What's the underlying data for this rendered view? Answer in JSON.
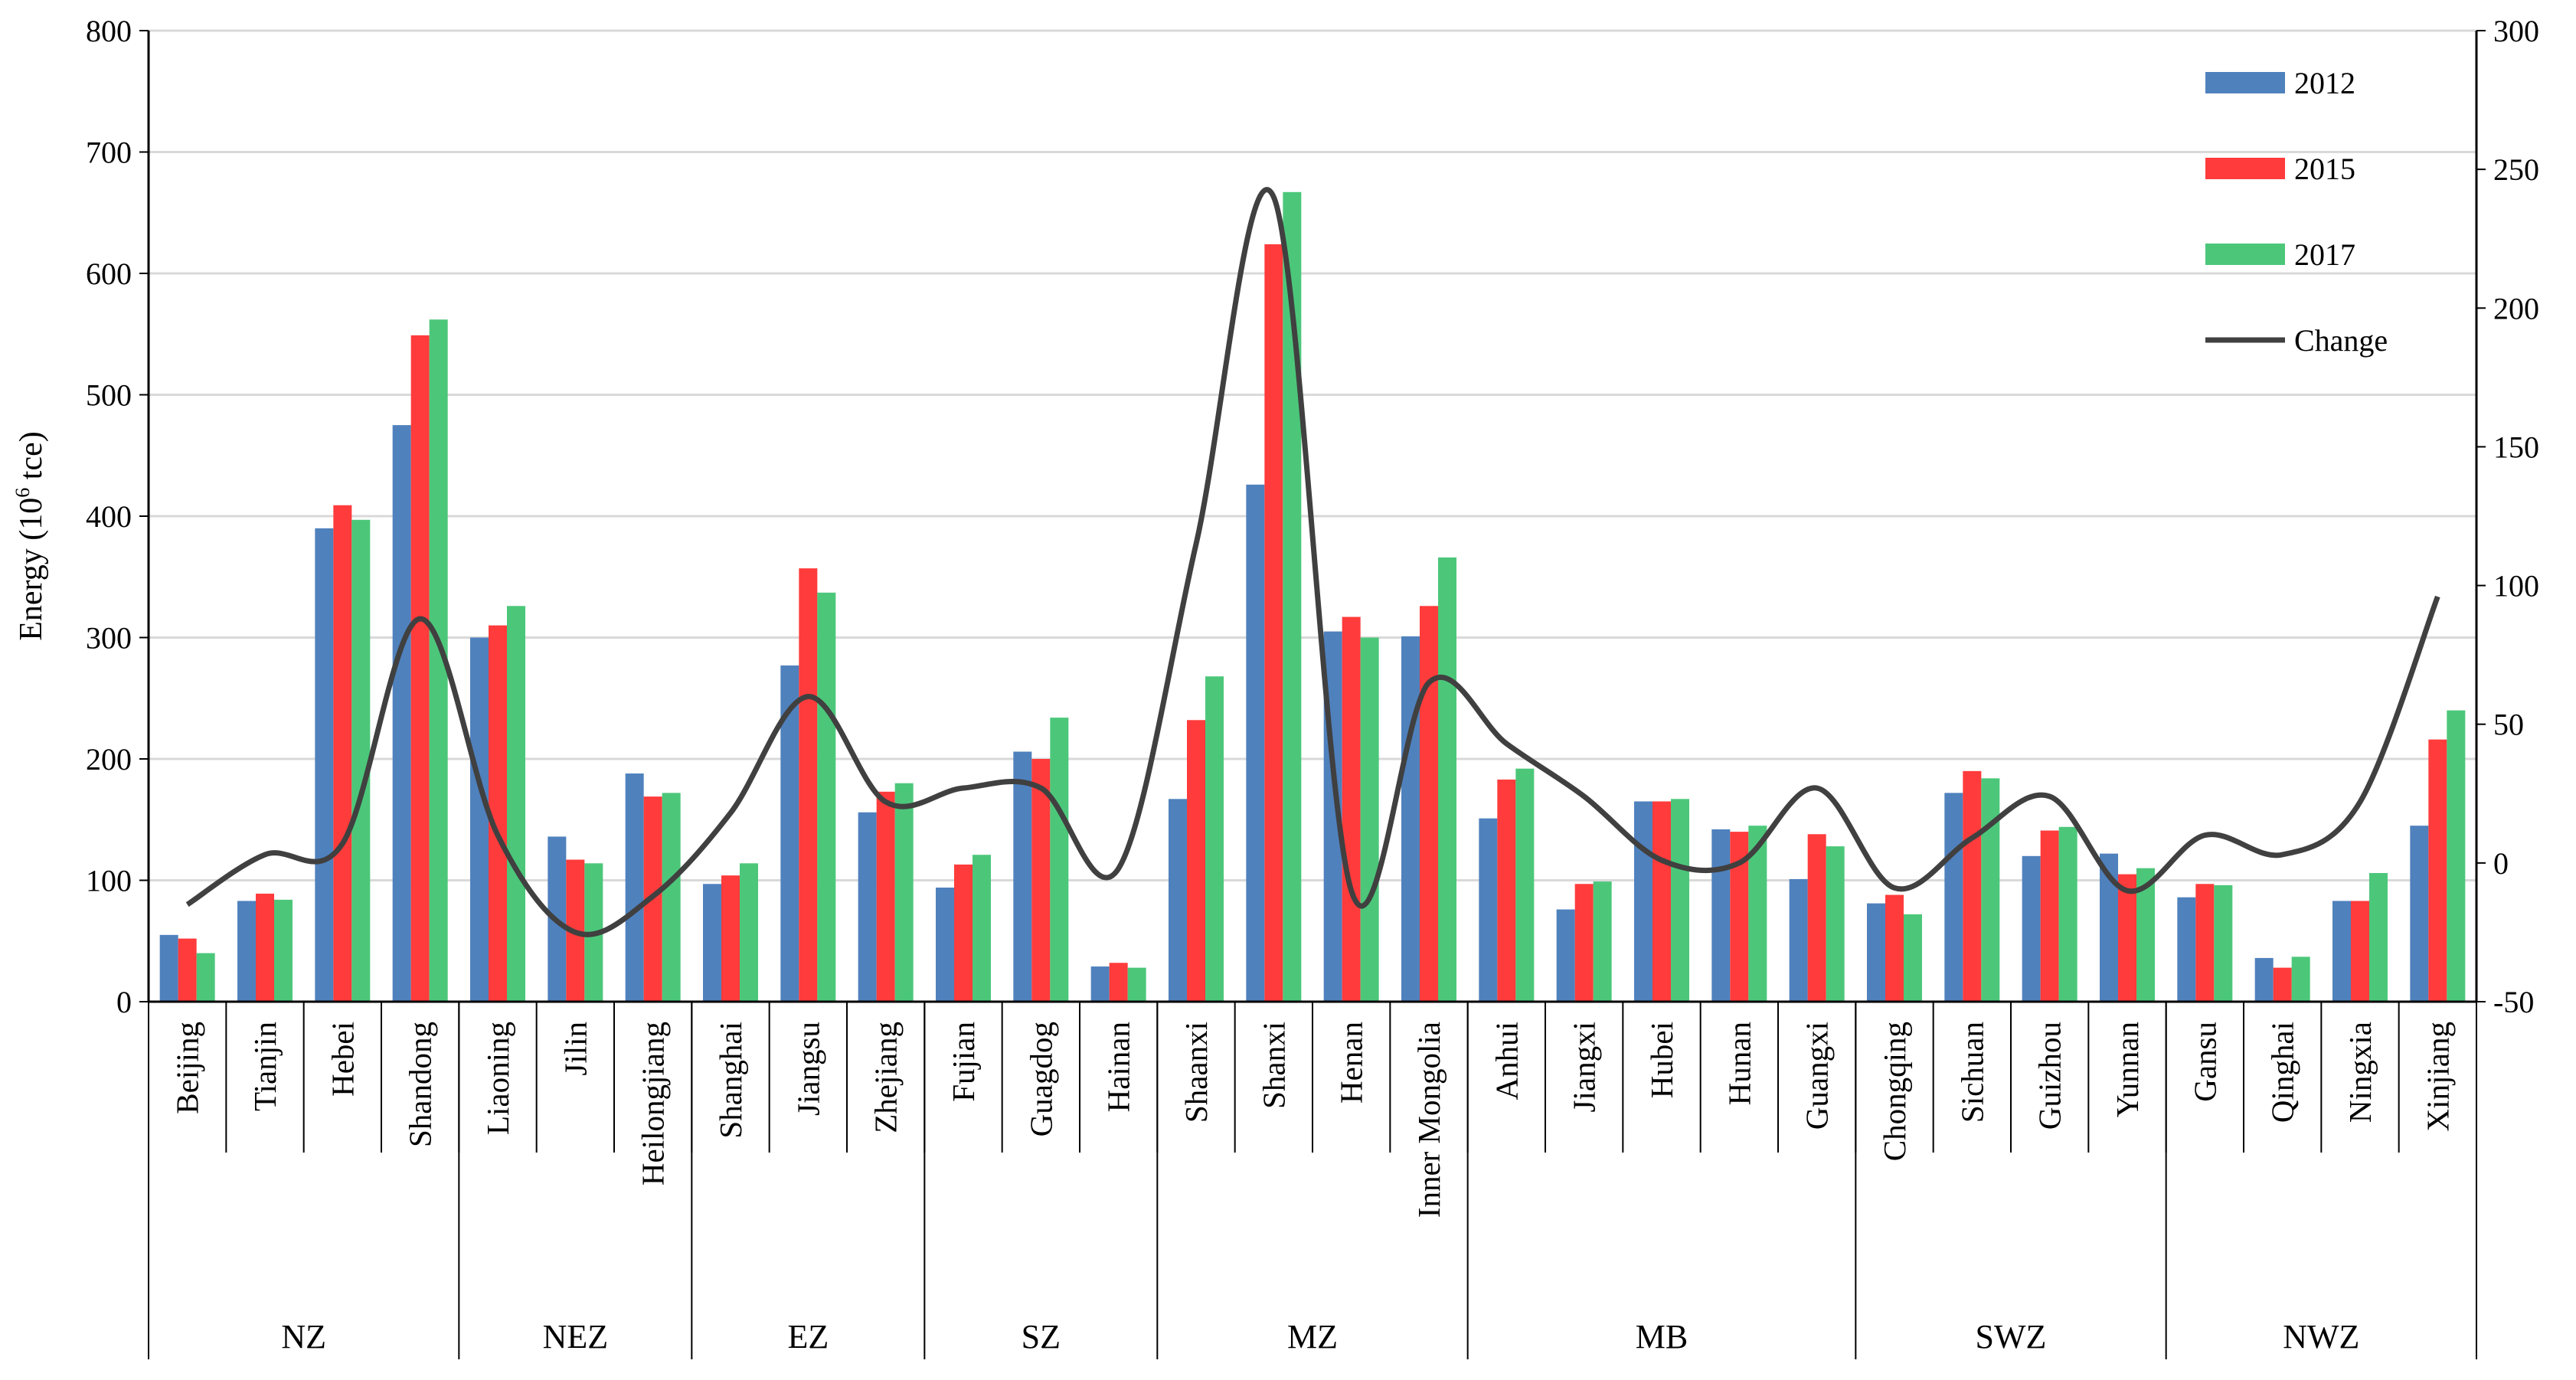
{
  "chart_data": {
    "type": "bar",
    "ylabel": "Energy (10",
    "ylabel_sup": "6",
    "ylabel_tail": " tce)",
    "ylim": [
      0,
      800
    ],
    "yticks": [
      "0",
      "100",
      "200",
      "300",
      "400",
      "500",
      "600",
      "700",
      "800"
    ],
    "y2lim": [
      -50,
      300
    ],
    "y2ticks": [
      "-50",
      "0",
      "50",
      "100",
      "150",
      "200",
      "250",
      "300"
    ],
    "grid": true,
    "legend_position": "top-right",
    "categories": [
      "Beijing",
      "Tianjin",
      "Hebei",
      "Shandong",
      "Liaoning",
      "Jilin",
      "Heilongjiang",
      "Shanghai",
      "Jiangsu",
      "Zhejiang",
      "Fujian",
      "Guagdog",
      "Hainan",
      "Shaanxi",
      "Shanxi",
      "Henan",
      "Inner Mongolia",
      "Anhui",
      "Jiangxi",
      "Hubei",
      "Hunan",
      "Guangxi",
      "Chongqing",
      "Sichuan",
      "Guizhou",
      "Yunnan",
      "Gansu",
      "Qinghai",
      "Ningxia",
      "Xinjiang"
    ],
    "groups": [
      {
        "name": "NZ",
        "count": 4
      },
      {
        "name": "NEZ",
        "count": 3
      },
      {
        "name": "EZ",
        "count": 3
      },
      {
        "name": "SZ",
        "count": 3
      },
      {
        "name": "MZ",
        "count": 4
      },
      {
        "name": "MB",
        "count": 5
      },
      {
        "name": "SWZ",
        "count": 4
      },
      {
        "name": "NWZ",
        "count": 4
      }
    ],
    "series": [
      {
        "name": "2012",
        "color": "#4f81bd",
        "values": [
          55,
          83,
          390,
          475,
          300,
          136,
          188,
          97,
          277,
          156,
          94,
          206,
          29,
          167,
          426,
          305,
          301,
          151,
          76,
          165,
          142,
          101,
          81,
          172,
          120,
          122,
          86,
          36,
          83,
          145
        ]
      },
      {
        "name": "2015",
        "color": "#ff3b3b",
        "values": [
          52,
          89,
          409,
          549,
          310,
          117,
          169,
          104,
          357,
          173,
          113,
          200,
          32,
          232,
          624,
          317,
          326,
          183,
          97,
          165,
          140,
          138,
          88,
          190,
          141,
          105,
          97,
          28,
          83,
          216
        ]
      },
      {
        "name": "2017",
        "color": "#4cc77a",
        "values": [
          40,
          84,
          397,
          562,
          326,
          114,
          172,
          114,
          337,
          180,
          121,
          234,
          28,
          268,
          667,
          300,
          366,
          192,
          99,
          167,
          145,
          128,
          72,
          184,
          144,
          110,
          96,
          37,
          106,
          240
        ]
      }
    ],
    "line_series": {
      "name": "Change",
      "color": "#404040",
      "axis": "right",
      "values": [
        -15,
        3,
        7,
        88,
        10,
        -25,
        -12,
        18,
        60,
        22,
        27,
        27,
        -2,
        115,
        240,
        -10,
        65,
        43,
        24,
        1,
        0,
        27,
        -9,
        9,
        24,
        -10,
        10,
        3,
        22,
        96
      ]
    }
  }
}
